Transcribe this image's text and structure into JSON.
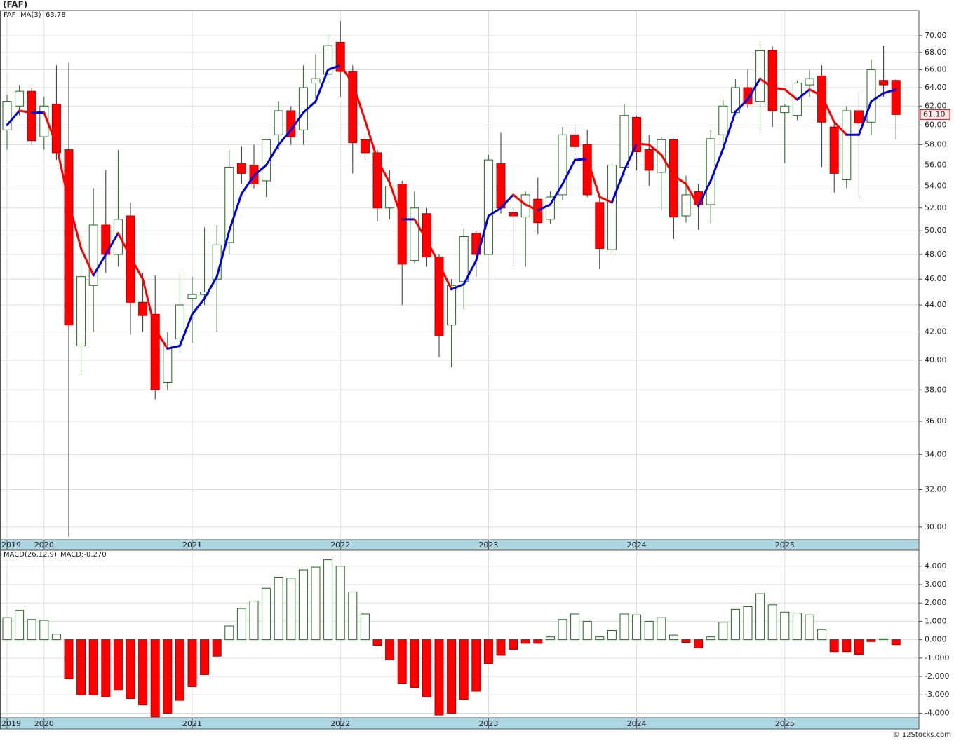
{
  "chart_data": [
    {
      "type": "candlestick",
      "title": "(FAF)",
      "log_scale": true,
      "grid": true,
      "categories": [
        "2019",
        null,
        null,
        "2020",
        null,
        null,
        null,
        null,
        null,
        null,
        null,
        null,
        null,
        null,
        null,
        "2021",
        null,
        null,
        null,
        null,
        null,
        null,
        null,
        null,
        null,
        null,
        null,
        "2022",
        null,
        null,
        null,
        null,
        null,
        null,
        null,
        null,
        null,
        null,
        null,
        "2023",
        null,
        null,
        null,
        null,
        null,
        null,
        null,
        null,
        null,
        null,
        null,
        "2024",
        null,
        null,
        null,
        null,
        null,
        null,
        null,
        null,
        null,
        null,
        null,
        "2025",
        null,
        null,
        null,
        null,
        null,
        null,
        null,
        null,
        null
      ],
      "up_color": "#1e6b1e",
      "down_color": "#ff0000",
      "series": [
        {
          "name": "FAF",
          "color": "#1e6b1e",
          "open": [
            59.5,
            62,
            63.6,
            58.8,
            62.2,
            57.5,
            41,
            45.5,
            50.5,
            48,
            51.3,
            44.2,
            43.3,
            38.5,
            41.5,
            44.5,
            44.8,
            46,
            49,
            56.2,
            56,
            54.5,
            59,
            61.5,
            59.5,
            64.5,
            65.5,
            69.2,
            65.8,
            58.5,
            57.2,
            52,
            54.2,
            47.5,
            51.5,
            47.8,
            42.5,
            45.8,
            49.8,
            48,
            56.2,
            51.6,
            51.2,
            52.8,
            51,
            53.2,
            59,
            58,
            52.5,
            48.4,
            55.8,
            60.8,
            57.5,
            55.3,
            58.5,
            51.3,
            53.5,
            52.3,
            59,
            61.3,
            64,
            62.5,
            68.2,
            61.3,
            61,
            64.3,
            65.3,
            59.8,
            54.6,
            61.5,
            60.3,
            64.8,
            64.8
          ],
          "high": [
            63.2,
            64.3,
            64,
            63,
            66.5,
            66.8,
            49.5,
            53.8,
            55.5,
            57.5,
            52.5,
            46.5,
            46.3,
            42,
            46.5,
            46.2,
            50.3,
            50.5,
            57.5,
            57.8,
            58,
            58.5,
            62.5,
            62,
            66.5,
            67.8,
            70.2,
            71.8,
            66.5,
            59,
            57.5,
            55.5,
            54.5,
            53.5,
            52,
            48,
            46,
            50.2,
            50,
            57,
            59.2,
            52,
            53.5,
            54.8,
            53.5,
            59.8,
            60,
            59.5,
            53,
            56.2,
            62.2,
            61,
            59,
            58.8,
            58.6,
            55,
            54.2,
            59.5,
            62.7,
            65,
            66,
            69,
            68.7,
            62.2,
            64.8,
            66,
            66.5,
            60.2,
            62,
            63.5,
            67.2,
            68.8,
            65
          ],
          "low": [
            57.5,
            61,
            58,
            57.5,
            56.5,
            29.5,
            39,
            42,
            46.5,
            47,
            41.8,
            42,
            37.4,
            38,
            40.5,
            41.2,
            44,
            42,
            48,
            54.2,
            53.8,
            53,
            57.5,
            58,
            58,
            62.2,
            64.5,
            63,
            55.2,
            56.5,
            50.8,
            51,
            44,
            47.3,
            47,
            40.2,
            39.5,
            43.7,
            46.2,
            48,
            51.5,
            47,
            47,
            49.7,
            50.6,
            52.7,
            57,
            53,
            46.8,
            48,
            55,
            55.5,
            54,
            51.8,
            49.3,
            50.7,
            50.1,
            50.6,
            57.5,
            61,
            61.8,
            59.5,
            59.8,
            56.2,
            60.5,
            63,
            55.8,
            53.4,
            53.8,
            53,
            59,
            63,
            58.5
          ],
          "close": [
            62.5,
            63.6,
            58.4,
            62,
            57.2,
            42.5,
            46.2,
            50.5,
            48,
            51,
            44.2,
            43.2,
            38,
            41,
            44,
            44.8,
            45,
            48.8,
            55.8,
            55.2,
            54.2,
            58.5,
            61.5,
            58.8,
            64,
            65,
            68.8,
            65.8,
            58.2,
            57.2,
            52,
            54,
            47.2,
            52,
            47.8,
            41.7,
            45.5,
            49.5,
            48,
            56.5,
            52,
            51.3,
            53.2,
            50.7,
            53,
            59,
            57.8,
            53.2,
            48.5,
            56,
            61,
            57.3,
            55.5,
            58.5,
            51.2,
            53.2,
            52.3,
            58.6,
            62,
            64,
            62.2,
            68.2,
            61.5,
            62,
            64.5,
            65,
            60.3,
            55.2,
            61.5,
            60.2,
            66,
            64.3,
            61.1
          ]
        },
        {
          "name": "MA(3)",
          "color": "#0000e0",
          "down_color": "#ff0000",
          "last_label": "63.78",
          "values": [
            60,
            61.5,
            61.3,
            61.3,
            58,
            52.5,
            48.5,
            46.3,
            48,
            49.8,
            47.8,
            46,
            42.2,
            40.8,
            41,
            43.3,
            44.5,
            46.2,
            50,
            53.3,
            55,
            56,
            58,
            59.5,
            61.3,
            62.5,
            66,
            66.5,
            64.5,
            60.5,
            56.5,
            54.3,
            51,
            51,
            49.2,
            47.2,
            45.2,
            45.6,
            47.5,
            51.3,
            52,
            53.2,
            52.3,
            51.8,
            52.3,
            54.2,
            56.5,
            56.6,
            53,
            52.5,
            55.5,
            58.1,
            58,
            57,
            55,
            54.2,
            52.2,
            54.5,
            57.6,
            61.4,
            62.7,
            65,
            64,
            63.8,
            62.7,
            63.8,
            63.1,
            60.3,
            59,
            59,
            62.5,
            63.4,
            63.78
          ]
        }
      ],
      "last_price": {
        "value": 61.1,
        "label": "61.10"
      },
      "ylim": [
        29.35,
        73.1
      ],
      "yticks": [
        {
          "value": 30,
          "label": "30.00"
        },
        {
          "value": 32,
          "label": "32.00"
        },
        {
          "value": 34,
          "label": "34.00"
        },
        {
          "value": 36,
          "label": "36.00"
        },
        {
          "value": 38,
          "label": "38.00"
        },
        {
          "value": 40,
          "label": "40.00"
        },
        {
          "value": 42,
          "label": "42.00"
        },
        {
          "value": 44,
          "label": "44.00"
        },
        {
          "value": 46,
          "label": "46.00"
        },
        {
          "value": 48,
          "label": "48.00"
        },
        {
          "value": 50,
          "label": "50.00"
        },
        {
          "value": 52,
          "label": "52.00"
        },
        {
          "value": 54,
          "label": "54.00"
        },
        {
          "value": 56,
          "label": "56.00"
        },
        {
          "value": 58,
          "label": "58.00"
        },
        {
          "value": 60,
          "label": "60.00"
        },
        {
          "value": 62,
          "label": "62.00"
        },
        {
          "value": 64,
          "label": "64.00"
        },
        {
          "value": 66,
          "label": "66.00"
        },
        {
          "value": 68,
          "label": "68.00"
        },
        {
          "value": 70,
          "label": "70.00"
        }
      ]
    },
    {
      "type": "bar",
      "grid": true,
      "indicator": "MACD(26,12,9)",
      "indicator_value": "MACD:-0.270",
      "categories": [
        "2019",
        null,
        null,
        "2020",
        null,
        null,
        null,
        null,
        null,
        null,
        null,
        null,
        null,
        null,
        null,
        "2021",
        null,
        null,
        null,
        null,
        null,
        null,
        null,
        null,
        null,
        null,
        null,
        "2022",
        null,
        null,
        null,
        null,
        null,
        null,
        null,
        null,
        null,
        null,
        null,
        "2023",
        null,
        null,
        null,
        null,
        null,
        null,
        null,
        null,
        null,
        null,
        null,
        "2024",
        null,
        null,
        null,
        null,
        null,
        null,
        null,
        null,
        null,
        null,
        null,
        "2025",
        null,
        null,
        null,
        null,
        null,
        null,
        null,
        null,
        null
      ],
      "up_color": "#1e6b1e",
      "down_color": "#ff0000",
      "values": [
        1.2,
        1.6,
        1.1,
        1.05,
        0.3,
        -2.1,
        -3,
        -3,
        -3.1,
        -2.75,
        -3.2,
        -3.55,
        -4.2,
        -4,
        -3.3,
        -2.55,
        -1.9,
        -0.9,
        0.75,
        1.7,
        2.1,
        2.8,
        3.4,
        3.35,
        3.8,
        3.95,
        4.35,
        4,
        2.6,
        1.4,
        -0.3,
        -1.1,
        -2.4,
        -2.6,
        -3.1,
        -4.1,
        -4,
        -3.25,
        -2.8,
        -1.3,
        -0.85,
        -0.55,
        -0.2,
        -0.2,
        0.15,
        1.1,
        1.4,
        1,
        0.15,
        0.5,
        1.4,
        1.35,
        1,
        1.2,
        0.25,
        -0.15,
        -0.45,
        0.15,
        0.95,
        1.65,
        1.8,
        2.5,
        1.9,
        1.5,
        1.45,
        1.35,
        0.55,
        -0.65,
        -0.65,
        -0.8,
        -0.1,
        0.05,
        -0.27
      ],
      "ylim": [
        -4.25,
        4.87
      ],
      "yticks": [
        {
          "value": -4,
          "label": "-4.000"
        },
        {
          "value": -3,
          "label": "-3.000"
        },
        {
          "value": -2,
          "label": "-2.000"
        },
        {
          "value": -1,
          "label": "-1.000"
        },
        {
          "value": 0,
          "label": "0.000"
        },
        {
          "value": 1,
          "label": "1.000"
        },
        {
          "value": 2,
          "label": "2.000"
        },
        {
          "value": 3,
          "label": "3.000"
        },
        {
          "value": 4,
          "label": "4.000"
        }
      ]
    }
  ],
  "footer": "© 12Stocks.com"
}
